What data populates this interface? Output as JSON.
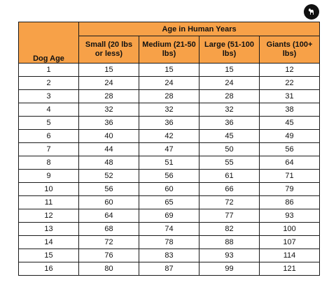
{
  "header": {
    "group_title": "Age in Human Years",
    "first_col": "Dog Age",
    "columns": [
      "Small (20 lbs or less)",
      "Medium (21-50 lbs)",
      "Large (51-100 lbs)",
      "Giants (100+ lbs)"
    ]
  },
  "rows": [
    [
      "1",
      "15",
      "15",
      "15",
      "12"
    ],
    [
      "2",
      "24",
      "24",
      "24",
      "22"
    ],
    [
      "3",
      "28",
      "28",
      "28",
      "31"
    ],
    [
      "4",
      "32",
      "32",
      "32",
      "38"
    ],
    [
      "5",
      "36",
      "36",
      "36",
      "45"
    ],
    [
      "6",
      "40",
      "42",
      "45",
      "49"
    ],
    [
      "7",
      "44",
      "47",
      "50",
      "56"
    ],
    [
      "8",
      "48",
      "51",
      "55",
      "64"
    ],
    [
      "9",
      "52",
      "56",
      "61",
      "71"
    ],
    [
      "10",
      "56",
      "60",
      "66",
      "79"
    ],
    [
      "11",
      "60",
      "65",
      "72",
      "86"
    ],
    [
      "12",
      "64",
      "69",
      "77",
      "93"
    ],
    [
      "13",
      "68",
      "74",
      "82",
      "100"
    ],
    [
      "14",
      "72",
      "78",
      "88",
      "107"
    ],
    [
      "15",
      "76",
      "83",
      "93",
      "114"
    ],
    [
      "16",
      "80",
      "87",
      "99",
      "121"
    ]
  ],
  "colors": {
    "header_bg": "#f7a148",
    "border": "#1a1a1a"
  },
  "icons": {
    "logo": "dog-silhouette-icon"
  }
}
